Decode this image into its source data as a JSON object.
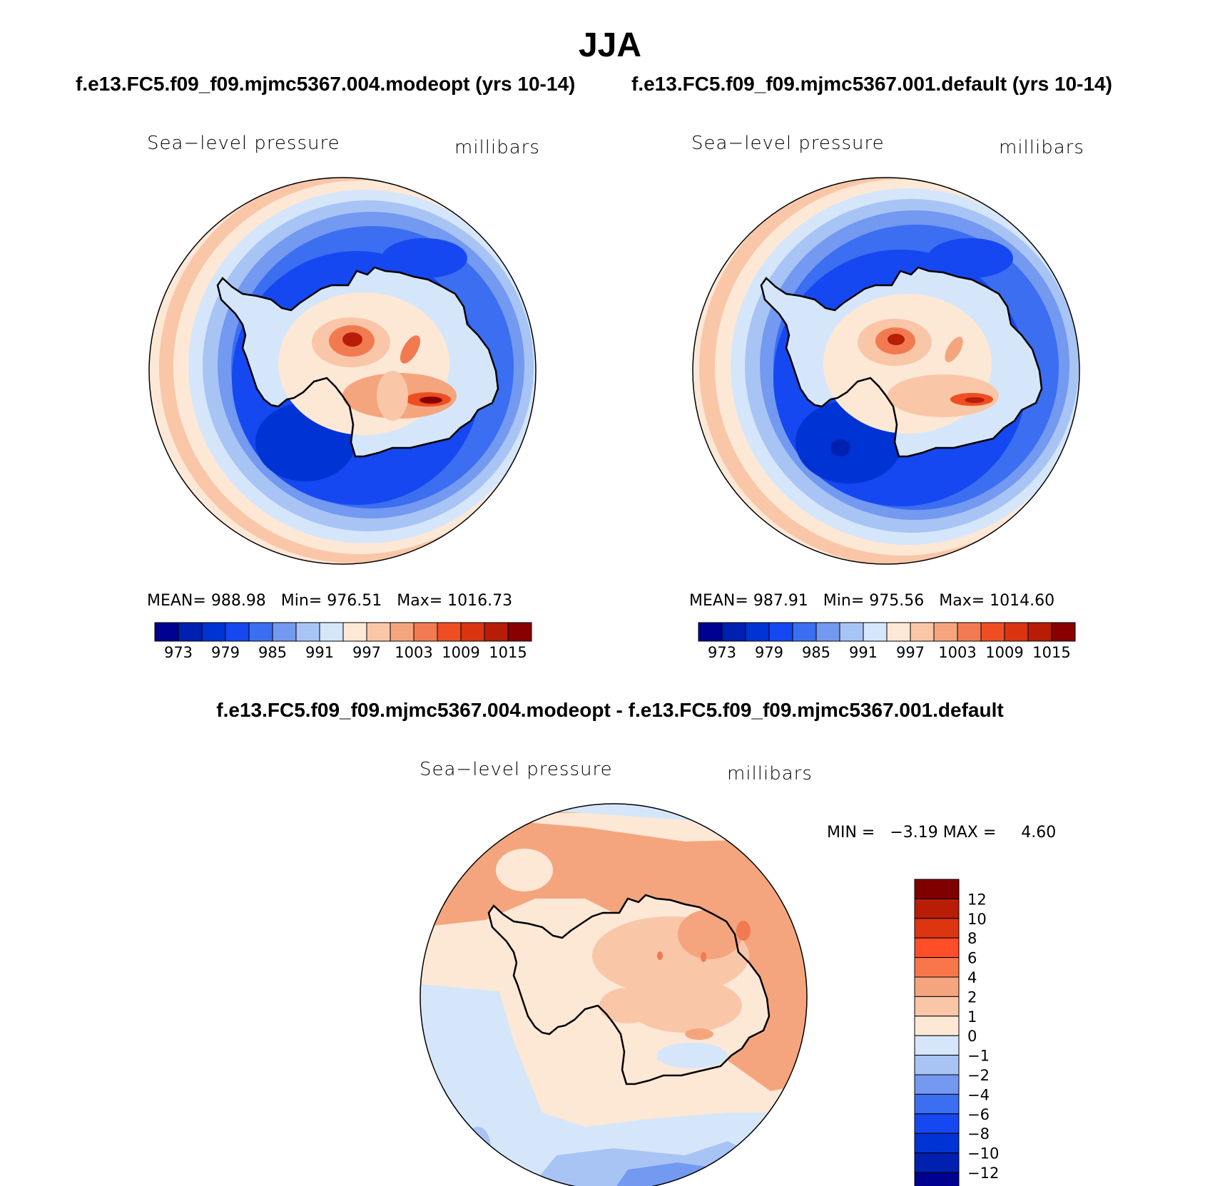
{
  "figure": {
    "title": "JJA",
    "diff_title": "f.e13.FC5.f09_f09.mjmc5367.004.modeopt - f.e13.FC5.f09_f09.mjmc5367.001.default"
  },
  "panels": [
    {
      "case_title": "f.e13.FC5.f09_f09.mjmc5367.004.modeopt (yrs 10-14)",
      "variable": "Sea−level pressure",
      "units": "millibars",
      "stats": {
        "mean_label": "MEAN=",
        "mean": "988.98",
        "min_label": "Min=",
        "min": "976.51",
        "max_label": "Max=",
        "max": "1016.73"
      }
    },
    {
      "case_title": "f.e13.FC5.f09_f09.mjmc5367.001.default (yrs 10-14)",
      "variable": "Sea−level pressure",
      "units": "millibars",
      "stats": {
        "mean_label": "MEAN=",
        "mean": "987.91",
        "min_label": "Min=",
        "min": "975.56",
        "max_label": "Max=",
        "max": "1014.60"
      }
    },
    {
      "variable": "Sea−level pressure",
      "units": "millibars",
      "stats": {
        "min_label": "MIN =",
        "min": "−3.19",
        "max_label": "MAX =",
        "max": "4.60"
      }
    }
  ],
  "colorbar_abs": {
    "colors": [
      "#000090",
      "#0020b0",
      "#0033d4",
      "#1548f0",
      "#3b6ef0",
      "#7399f0",
      "#a8c4f5",
      "#d5e6fa",
      "#fde8d6",
      "#f9c6a8",
      "#f5a57e",
      "#f27a50",
      "#ee4e22",
      "#d93510",
      "#b81d08",
      "#880000"
    ],
    "labels": [
      "973",
      "979",
      "985",
      "991",
      "997",
      "1003",
      "1009",
      "1015"
    ]
  },
  "colorbar_diff": {
    "colors": [
      "#800000",
      "#b81d08",
      "#dd3510",
      "#ff4e28",
      "#f9764a",
      "#f5a57e",
      "#f9c6a8",
      "#fde8d6",
      "#d5e6fa",
      "#a8c4f5",
      "#7399f0",
      "#3b6ef0",
      "#1548f0",
      "#0033d4",
      "#0020b0",
      "#000090"
    ],
    "labels": [
      "12",
      "10",
      "8",
      "6",
      "4",
      "2",
      "1",
      "0",
      "−1",
      "−2",
      "−4",
      "−6",
      "−8",
      "−10",
      "−12"
    ]
  }
}
